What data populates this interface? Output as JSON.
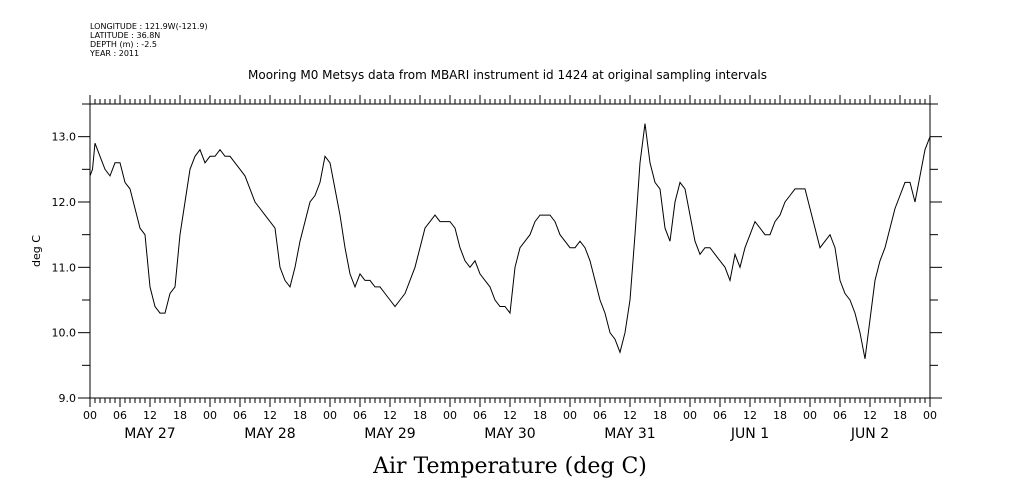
{
  "metadata": {
    "longitude": "LONGITUDE : 121.9W(-121.9)",
    "latitude": "LATITUDE : 36.8N",
    "depth": "DEPTH (m) : -2.5",
    "year": "YEAR : 2011"
  },
  "chart_data": {
    "type": "line",
    "title": "Air Temperature (deg C)",
    "subtitle": "Mooring M0 Metsys data from MBARI instrument id 1424 at original sampling intervals",
    "ylabel": "deg C",
    "xlabel": "",
    "ylim": [
      9.0,
      13.5
    ],
    "yticks": [
      "9.0",
      "10.0",
      "11.0",
      "12.0",
      "13.0"
    ],
    "xlim_hours": [
      0,
      168
    ],
    "hour_tick_labels": [
      "00",
      "06",
      "12",
      "18",
      "00",
      "06",
      "12",
      "18",
      "00",
      "06",
      "12",
      "18",
      "00",
      "06",
      "12",
      "18",
      "00",
      "06",
      "12",
      "18",
      "00",
      "06",
      "12",
      "18",
      "00",
      "06",
      "12",
      "18",
      "00"
    ],
    "day_labels": [
      "MAY 27",
      "MAY 28",
      "MAY 29",
      "MAY 30",
      "MAY 31",
      "JUN  1",
      "JUN  2"
    ],
    "grid": false,
    "series": [
      {
        "x_hours": [
          0,
          0.5,
          1,
          2,
          3,
          4,
          5,
          6,
          7,
          8,
          9,
          10,
          11,
          12,
          13,
          14,
          15,
          16,
          17,
          18,
          19,
          20,
          21,
          22,
          23,
          24,
          25,
          26,
          27,
          28,
          29,
          30,
          31,
          32,
          33,
          34,
          35,
          36,
          37,
          38,
          39,
          40,
          41,
          42,
          43,
          44,
          45,
          46,
          47,
          48,
          49,
          50,
          51,
          52,
          53,
          54,
          55,
          56,
          57,
          58,
          59,
          60,
          61,
          62,
          63,
          64,
          65,
          66,
          67,
          68,
          69,
          70,
          71,
          72,
          73,
          74,
          75,
          76,
          77,
          78,
          79,
          80,
          81,
          82,
          83,
          84,
          85,
          86,
          87,
          88,
          89,
          90,
          91,
          92,
          93,
          94,
          95,
          96,
          97,
          98,
          99,
          100,
          101,
          102,
          103,
          104,
          105,
          106,
          107,
          108,
          109,
          110,
          111,
          112,
          113,
          114,
          115,
          116,
          117,
          118,
          119,
          120,
          121,
          122,
          123,
          124,
          125,
          126,
          127,
          128,
          129,
          130,
          131,
          132,
          133,
          134,
          135,
          136,
          137,
          138,
          139,
          140,
          141,
          142,
          143,
          144,
          145,
          146,
          147,
          148,
          149,
          150,
          151,
          152,
          153,
          154,
          155,
          156,
          157,
          158,
          159,
          160,
          161,
          162,
          163,
          164,
          165,
          166,
          167,
          168
        ],
        "values": [
          12.4,
          12.5,
          12.9,
          12.7,
          12.5,
          12.4,
          12.6,
          12.6,
          12.3,
          12.2,
          11.9,
          11.6,
          11.5,
          10.7,
          10.4,
          10.3,
          10.3,
          10.6,
          10.7,
          11.5,
          12.0,
          12.5,
          12.7,
          12.8,
          12.6,
          12.7,
          12.7,
          12.8,
          12.7,
          12.7,
          12.6,
          12.5,
          12.4,
          12.2,
          12.0,
          11.9,
          11.8,
          11.7,
          11.6,
          11.0,
          10.8,
          10.7,
          11.0,
          11.4,
          11.7,
          12.0,
          12.1,
          12.3,
          12.7,
          12.6,
          12.2,
          11.8,
          11.3,
          10.9,
          10.7,
          10.9,
          10.8,
          10.8,
          10.7,
          10.7,
          10.6,
          10.5,
          10.4,
          10.5,
          10.6,
          10.8,
          11.0,
          11.3,
          11.6,
          11.7,
          11.8,
          11.7,
          11.7,
          11.7,
          11.6,
          11.3,
          11.1,
          11.0,
          11.1,
          10.9,
          10.8,
          10.7,
          10.5,
          10.4,
          10.4,
          10.3,
          11.0,
          11.3,
          11.4,
          11.5,
          11.7,
          11.8,
          11.8,
          11.8,
          11.7,
          11.5,
          11.4,
          11.3,
          11.3,
          11.4,
          11.3,
          11.1,
          10.8,
          10.5,
          10.3,
          10.0,
          9.9,
          9.7,
          10.0,
          10.5,
          11.5,
          12.6,
          13.2,
          12.6,
          12.3,
          12.2,
          11.6,
          11.4,
          12.0,
          12.3,
          12.2,
          11.8,
          11.4,
          11.2,
          11.3,
          11.3,
          11.2,
          11.1,
          11.0,
          10.8,
          11.2,
          11.0,
          11.3,
          11.5,
          11.7,
          11.6,
          11.5,
          11.5,
          11.7,
          11.8,
          12.0,
          12.1,
          12.2,
          12.2,
          12.2,
          11.9,
          11.6,
          11.3,
          11.4,
          11.5,
          11.3,
          10.8,
          10.6,
          10.5,
          10.3,
          10.0,
          9.6,
          10.2,
          10.8,
          11.1,
          11.3,
          11.6,
          11.9,
          12.1,
          12.3,
          12.3,
          12.0,
          12.4,
          12.8,
          13.0
        ]
      }
    ]
  }
}
